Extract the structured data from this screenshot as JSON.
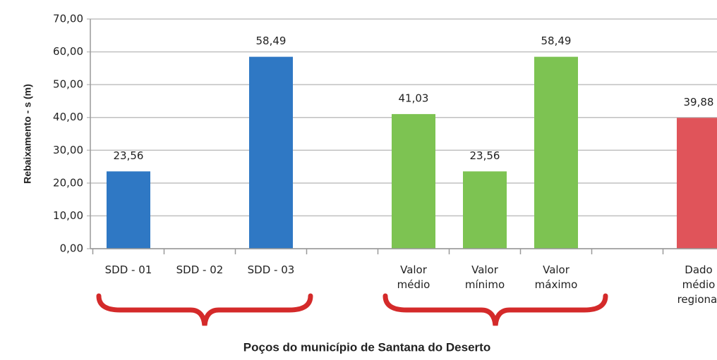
{
  "chart_data": {
    "type": "bar",
    "y_label": "Rebaixamento - s (m)",
    "annotation": "Poços do município  de Santana do Deserto",
    "categories": [
      [
        "SDD - 01"
      ],
      [
        "SDD - 02"
      ],
      [
        "SDD - 03"
      ],
      null,
      [
        "Valor",
        "médio"
      ],
      [
        "Valor",
        "mínimo"
      ],
      [
        "Valor",
        "máximo"
      ],
      null,
      [
        "Dado",
        "médio",
        "regional"
      ]
    ],
    "values": [
      23.56,
      null,
      58.49,
      null,
      41.03,
      23.56,
      58.49,
      null,
      39.88
    ],
    "value_labels": [
      "23,56",
      null,
      "58,49",
      null,
      "41,03",
      "23,56",
      "58,49",
      null,
      "39,88"
    ],
    "colors": [
      "#2f78c4",
      "#2f78c4",
      "#2f78c4",
      null,
      "#7dc352",
      "#7dc352",
      "#7dc352",
      null,
      "#e0545a"
    ],
    "ylim": [
      0,
      70
    ],
    "yticks": [
      {
        "value": 0,
        "label": "0,00"
      },
      {
        "value": 10,
        "label": "10,00"
      },
      {
        "value": 20,
        "label": "20,00"
      },
      {
        "value": 30,
        "label": "30,00"
      },
      {
        "value": 40,
        "label": "40,00"
      },
      {
        "value": 50,
        "label": "50,00"
      },
      {
        "value": 60,
        "label": "60,00"
      },
      {
        "value": 70,
        "label": "70,00"
      }
    ],
    "grid": true
  }
}
